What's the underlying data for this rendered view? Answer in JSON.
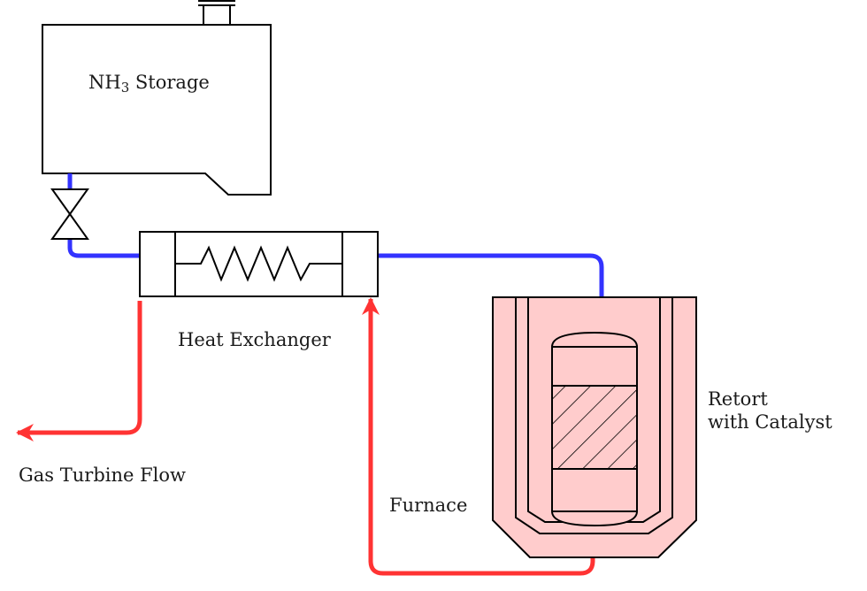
{
  "labels": {
    "storage_name": "NH",
    "storage_subscript": "3",
    "storage_suffix": " Storage",
    "heat_exchanger": "Heat Exchanger",
    "gas_turbine_flow": "Gas Turbine Flow",
    "furnace": "Furnace",
    "retort_line1": "Retort",
    "retort_line2": "with Catalyst"
  },
  "colors": {
    "cold_stream": "#3333ff",
    "hot_stream": "#ff3333",
    "furnace_fill": "#ffcccc",
    "outline": "#000000"
  }
}
